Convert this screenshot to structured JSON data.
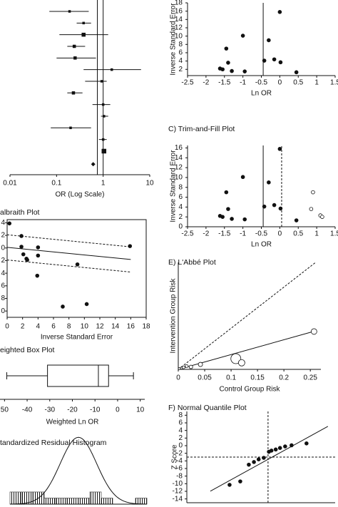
{
  "chart_data": [
    {
      "type": "forest",
      "xlabel": "OR (Log Scale)",
      "log_x": true,
      "xlim": [
        0.01,
        10
      ],
      "xticks": [
        0.01,
        0.1,
        1,
        10
      ],
      "values": [
        0.19,
        0.38,
        0.38,
        0.24,
        0.25,
        1.53,
        0.93,
        0.23,
        1.0,
        1.04,
        0.2,
        1.0,
        1.04
      ],
      "ci_low": [
        0.07,
        0.27,
        0.115,
        0.17,
        0.1,
        0.38,
        0.41,
        0.17,
        0.59,
        0.9,
        0.075,
        0.81,
        0.97
      ],
      "ci_high": [
        0.49,
        0.55,
        1.28,
        0.41,
        0.7,
        6.5,
        1.19,
        0.36,
        1.42,
        1.28,
        0.55,
        1.19,
        1.12
      ],
      "weights": [
        2,
        2,
        4,
        3,
        3,
        2,
        2,
        3,
        2,
        2,
        2,
        2,
        5
      ],
      "pooled": {
        "value": 0.61,
        "low": 0.55,
        "high": 0.68
      },
      "ref_x": [
        0.75,
        1
      ]
    },
    {
      "type": "scatter",
      "title": "albraith Plot",
      "xlabel": "Inverse Standard Error",
      "frame": true,
      "xlim": [
        0,
        18
      ],
      "ylim": [
        -11,
        4.5
      ],
      "xticks": [
        0,
        2,
        4,
        6,
        8,
        10,
        12,
        14,
        16,
        18
      ],
      "yticks": [
        {
          "value": -10,
          "label": "0"
        },
        {
          "value": -8,
          "label": "8"
        },
        {
          "value": -6,
          "label": "6"
        },
        {
          "value": -4,
          "label": "4"
        },
        {
          "value": -2,
          "label": "2"
        },
        0,
        2,
        4
      ],
      "x": [
        0.3,
        1.85,
        1.85,
        2.1,
        2.5,
        2.6,
        4.0,
        4.0,
        3.9,
        9.1,
        7.2,
        10.3,
        15.9
      ],
      "y": [
        3.9,
        1.9,
        0.2,
        -1.0,
        -1.7,
        -1.9,
        0.1,
        -1.2,
        -4.4,
        -2.6,
        -9.3,
        -8.9,
        0.3
      ],
      "filled": true,
      "fit": {
        "intercept": 0.1,
        "slope": -0.12
      },
      "fit_range": [
        0,
        16
      ],
      "band": 2
    },
    {
      "type": "box",
      "title": "eighted Box Plot",
      "xlabel": "Weighted Ln OR",
      "xlim": [
        -52,
        12
      ],
      "xticks": [
        {
          "value": -50,
          "label": "50"
        },
        -40,
        -30,
        -20,
        -10,
        0,
        10
      ],
      "box": {
        "whisker_low": -49,
        "q1": -31,
        "median": -8.5,
        "q3": -4,
        "whisker_high": 7
      }
    },
    {
      "type": "histogram",
      "title": "tandardized Residual Histogram",
      "xlim": [
        -3,
        3
      ],
      "ylim": [
        0,
        11.5
      ],
      "bins": [
        -3,
        -2.5,
        -2,
        -1.5,
        -1,
        -0.5,
        0,
        0.5,
        1,
        1.5,
        2,
        2.5,
        3
      ],
      "counts": [
        2,
        2,
        2,
        1,
        1,
        1,
        1,
        2,
        1,
        0,
        0,
        1
      ],
      "curve": {
        "mean": 0,
        "sd": 0.8,
        "peak": 11
      }
    },
    {
      "type": "scatter",
      "xlabel": "Ln OR",
      "ylabel": "Inverse Standard Error",
      "xlim": [
        -2.5,
        1.5
      ],
      "ylim": [
        0.5,
        18
      ],
      "xticks": [
        -2.5,
        -2,
        -1.5,
        -1,
        -0.5,
        0,
        0.5,
        1,
        1.5
      ],
      "yticks": [
        2,
        4,
        6,
        8,
        10,
        12,
        14,
        16,
        18
      ],
      "x": [
        -1.62,
        -1.55,
        -1.45,
        -1.4,
        -1.3,
        -1.0,
        -0.95,
        -0.42,
        -0.3,
        -0.15,
        0.0,
        0.02,
        0.45
      ],
      "y": [
        2.2,
        2.0,
        7.0,
        3.6,
        1.6,
        10.1,
        1.5,
        4.1,
        9.0,
        4.4,
        15.8,
        3.7,
        1.3
      ],
      "filled": true,
      "ref_x": -0.45
    },
    {
      "type": "scatter",
      "title": "C) Trim-and-Fill Plot",
      "xlabel": "Ln OR",
      "ylabel": "Inverse Standard Error",
      "xlim": [
        -2.5,
        1.5
      ],
      "ylim": [
        0,
        16.5
      ],
      "xticks": [
        -2.5,
        -2,
        -1.5,
        -1,
        -0.5,
        0,
        0.5,
        1,
        1.5
      ],
      "yticks": [
        0,
        2,
        4,
        6,
        8,
        10,
        12,
        14,
        16
      ],
      "x": [
        -1.62,
        -1.55,
        -1.45,
        -1.4,
        -1.3,
        -1.0,
        -0.95,
        -0.42,
        -0.3,
        -0.15,
        0.0,
        0.02,
        0.45
      ],
      "y": [
        2.2,
        2.0,
        7.0,
        3.6,
        1.6,
        10.1,
        1.5,
        4.1,
        9.0,
        4.4,
        15.8,
        3.7,
        1.3
      ],
      "imputed_x": [
        0.9,
        0.85,
        1.1,
        1.15
      ],
      "imputed_y": [
        7.0,
        3.6,
        2.3,
        2.0
      ],
      "filled": true,
      "ref_x": -0.45,
      "ref_x_dashed": 0.05
    },
    {
      "type": "scatter",
      "title": "E) L'Abbé Plot",
      "xlabel": "Control Group Risk",
      "ylabel": "Intervention Group Risk",
      "xlim": [
        0,
        0.27
      ],
      "ylim": [
        0,
        0.26
      ],
      "xticks": [
        0,
        0.05,
        0.1,
        0.15,
        0.2,
        0.25
      ],
      "x": [
        0.002,
        0.006,
        0.01,
        0.016,
        0.024,
        0.042,
        0.109,
        0.12,
        0.257
      ],
      "y": [
        0.002,
        0.003,
        0.005,
        0.008,
        0.006,
        0.012,
        0.026,
        0.016,
        0.092
      ],
      "sizes": [
        1.5,
        1.5,
        2,
        2,
        2.5,
        3,
        7,
        4.5,
        4
      ],
      "filled": false,
      "identity_range": [
        0,
        0.26
      ],
      "fit": {
        "intercept": 0,
        "slope": 0.36
      },
      "fit_range": [
        0,
        0.257
      ]
    },
    {
      "type": "scatter",
      "title": "F) Normal Quantile Plot",
      "ylabel": "Z Score",
      "xlim": [
        -1.9,
        1.57
      ],
      "ylim": [
        -15,
        9
      ],
      "yticks": [
        -14,
        -12,
        -10,
        -8,
        -6,
        -4,
        -2,
        0,
        2,
        4,
        6,
        8
      ],
      "x": [
        -0.9,
        -0.65,
        -0.45,
        -0.33,
        -0.22,
        -0.1,
        0.02,
        0.08,
        0.18,
        0.28,
        0.4,
        0.55,
        0.9
      ],
      "y": [
        -10.3,
        -9.4,
        -5.0,
        -4.3,
        -3.6,
        -3.2,
        -1.6,
        -1.3,
        -1.0,
        -0.6,
        -0.2,
        0.1,
        0.6
      ],
      "filled": true,
      "fit": {
        "intercept": -3.6,
        "slope": 6.2
      },
      "fit_range": [
        -1.35,
        1.4
      ],
      "ref_x_dashed": 0,
      "ref_y_dashed": -3
    }
  ]
}
